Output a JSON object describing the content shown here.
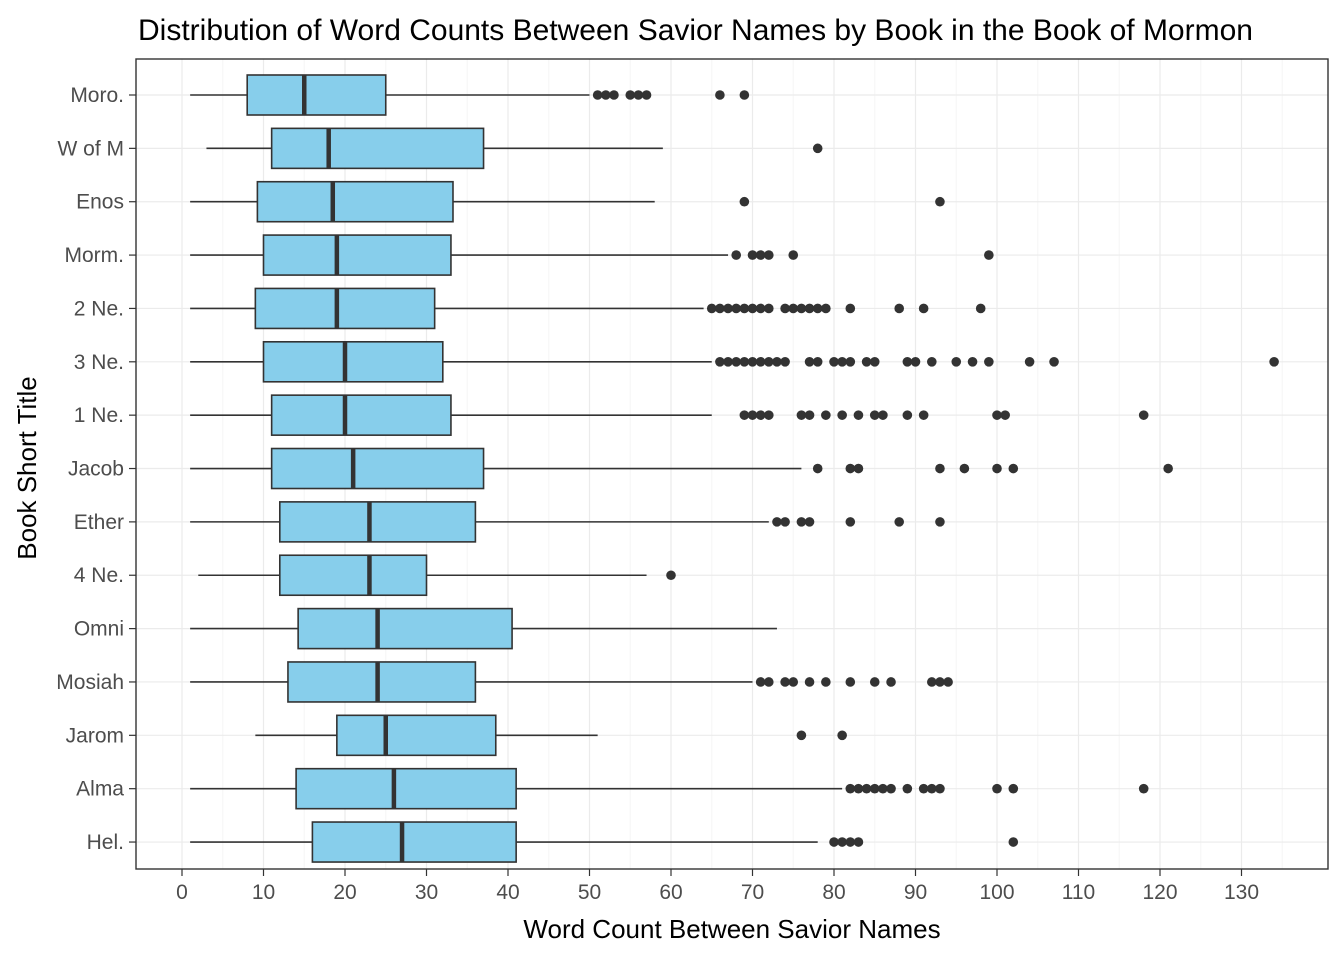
{
  "chart_data": {
    "type": "boxplot",
    "orientation": "horizontal",
    "title": "Distribution of Word Counts Between Savior Names by Book in the Book of Mormon",
    "xlabel": "Word Count Between Savior Names",
    "ylabel": "Book Short Title",
    "xlim": [
      -5,
      139
    ],
    "xticks": [
      0,
      10,
      20,
      30,
      40,
      50,
      60,
      70,
      80,
      90,
      100,
      110,
      120,
      130
    ],
    "grid": true,
    "legend": "none",
    "colors": {
      "box_fill": "#87CEEB",
      "box_stroke": "#333333",
      "grid_major": "#ebebeb",
      "grid_minor": "#f5f5f5"
    },
    "categories": [
      "Moro.",
      "W of M",
      "Enos",
      "Morm.",
      "2 Ne.",
      "3 Ne.",
      "1 Ne.",
      "Jacob",
      "Ether",
      "4 Ne.",
      "Omni",
      "Mosiah",
      "Jarom",
      "Alma",
      "Hel."
    ],
    "boxes": [
      {
        "label": "Moro.",
        "whisker_low": 1,
        "q1": 8,
        "median": 15,
        "q3": 25,
        "whisker_high": 50,
        "outliers": [
          51,
          52,
          53,
          55,
          56,
          57,
          66,
          69
        ]
      },
      {
        "label": "W of M",
        "whisker_low": 3,
        "q1": 11,
        "median": 18,
        "q3": 37,
        "whisker_high": 59,
        "outliers": [
          78
        ]
      },
      {
        "label": "Enos",
        "whisker_low": 1,
        "q1": 9.25,
        "median": 18.5,
        "q3": 33.25,
        "whisker_high": 58,
        "outliers": [
          69,
          93
        ]
      },
      {
        "label": "Morm.",
        "whisker_low": 1,
        "q1": 10,
        "median": 19,
        "q3": 33,
        "whisker_high": 67,
        "outliers": [
          68,
          70,
          71,
          72,
          75,
          99
        ]
      },
      {
        "label": "2 Ne.",
        "whisker_low": 1,
        "q1": 9,
        "median": 19,
        "q3": 31,
        "whisker_high": 64,
        "outliers": [
          65,
          66,
          67,
          68,
          69,
          70,
          71,
          72,
          74,
          75,
          76,
          77,
          78,
          79,
          82,
          88,
          91,
          98
        ]
      },
      {
        "label": "3 Ne.",
        "whisker_low": 1,
        "q1": 10,
        "median": 20,
        "q3": 32,
        "whisker_high": 65,
        "outliers": [
          66,
          67,
          68,
          69,
          70,
          71,
          72,
          73,
          74,
          77,
          78,
          80,
          81,
          82,
          84,
          85,
          89,
          90,
          92,
          95,
          97,
          99,
          104,
          107,
          134
        ]
      },
      {
        "label": "1 Ne.",
        "whisker_low": 1,
        "q1": 11,
        "median": 20,
        "q3": 33,
        "whisker_high": 65,
        "outliers": [
          69,
          70,
          71,
          72,
          76,
          77,
          79,
          81,
          83,
          85,
          86,
          89,
          91,
          100,
          101,
          118
        ]
      },
      {
        "label": "Jacob",
        "whisker_low": 1,
        "q1": 11,
        "median": 21,
        "q3": 37,
        "whisker_high": 76,
        "outliers": [
          78,
          82,
          83,
          93,
          96,
          100,
          102,
          121
        ]
      },
      {
        "label": "Ether",
        "whisker_low": 1,
        "q1": 12,
        "median": 23,
        "q3": 36,
        "whisker_high": 72,
        "outliers": [
          73,
          74,
          76,
          77,
          82,
          88,
          93
        ]
      },
      {
        "label": "4 Ne.",
        "whisker_low": 2,
        "q1": 12,
        "median": 23,
        "q3": 30,
        "whisker_high": 57,
        "outliers": [
          60
        ]
      },
      {
        "label": "Omni",
        "whisker_low": 1,
        "q1": 14.25,
        "median": 24,
        "q3": 40.5,
        "whisker_high": 73,
        "outliers": []
      },
      {
        "label": "Mosiah",
        "whisker_low": 1,
        "q1": 13,
        "median": 24,
        "q3": 36,
        "whisker_high": 70,
        "outliers": [
          71,
          72,
          74,
          75,
          77,
          79,
          82,
          85,
          87,
          92,
          93,
          94
        ]
      },
      {
        "label": "Jarom",
        "whisker_low": 9,
        "q1": 19,
        "median": 25,
        "q3": 38.5,
        "whisker_high": 51,
        "outliers": [
          76,
          81
        ]
      },
      {
        "label": "Alma",
        "whisker_low": 1,
        "q1": 14,
        "median": 26,
        "q3": 41,
        "whisker_high": 81,
        "outliers": [
          82,
          83,
          84,
          85,
          86,
          87,
          89,
          91,
          92,
          93,
          100,
          102,
          118
        ]
      },
      {
        "label": "Hel.",
        "whisker_low": 1,
        "q1": 16,
        "median": 27,
        "q3": 41,
        "whisker_high": 78,
        "outliers": [
          80,
          81,
          82,
          83,
          102
        ]
      }
    ]
  }
}
